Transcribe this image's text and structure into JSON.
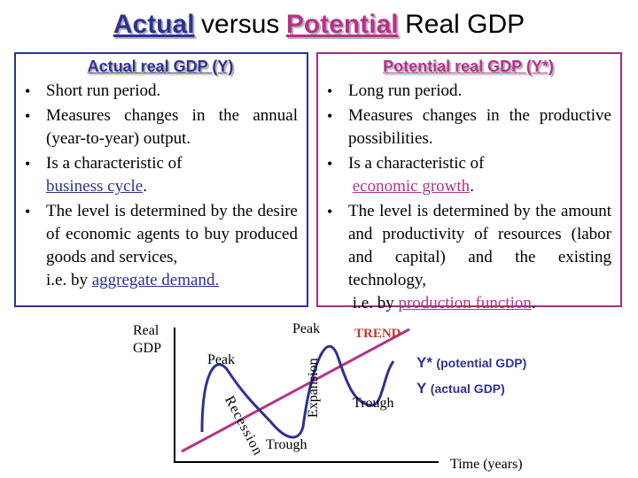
{
  "title": {
    "actual": "Actual",
    "middle": "versus",
    "potential": "Potential",
    "end": "Real GDP"
  },
  "left_box": {
    "heading": "Actual real GDP (Y)",
    "bullets": [
      {
        "text": "Short run period."
      },
      {
        "text": "Measures changes in the annual (year-to-year) output."
      },
      {
        "text": "Is a characteristic of",
        "link": "business cycle",
        "after": "."
      },
      {
        "text": "The level is determined by the desire of economic agents to buy produced goods and services,",
        "line2_prefix": "i.e. by",
        "link": "aggregate demand."
      }
    ]
  },
  "right_box": {
    "heading": "Potential real GDP (Y*)",
    "bullets": [
      {
        "text": "Long run period."
      },
      {
        "text": "Measures changes in the productive possibilities."
      },
      {
        "text": "Is a characteristic of",
        "link": "economic growth",
        "after": "."
      },
      {
        "text": "The level is determined by the amount and productivity of resources (labor and capital) and the existing technology,",
        "line2_prefix": "i.e. by",
        "link": "production function",
        "after": "."
      }
    ]
  },
  "diagram": {
    "y_axis_line1": "Real",
    "y_axis_line2": "GDP",
    "x_axis": "Time (years)",
    "peak_left": "Peak",
    "peak_top": "Peak",
    "trough_bottom": "Trough",
    "trough_right": "Trough",
    "recession": "Recession",
    "expansion": "Expansion",
    "trend": "TREND",
    "potential_sym": "Y*",
    "potential_desc": "(potential GDP)",
    "actual_sym": "Y",
    "actual_desc": "(actual GDP)",
    "colors": {
      "cycle": "#2e3192",
      "trend": "#b5328a",
      "trend_label": "#c0392b",
      "legend": "#2e3192"
    }
  }
}
